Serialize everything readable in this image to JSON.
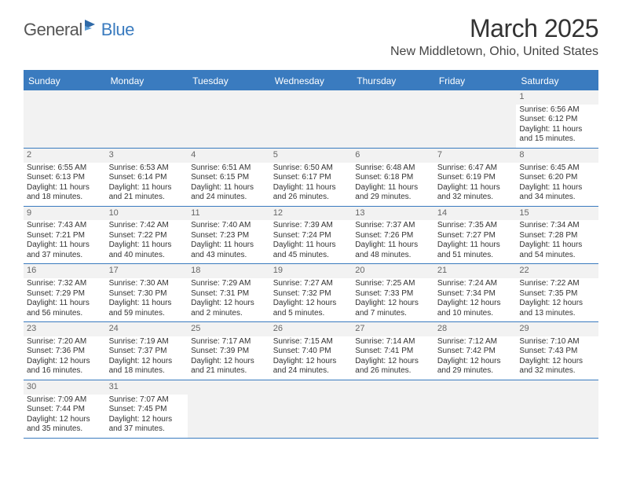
{
  "logo": {
    "text_dark": "General",
    "text_blue": "Blue"
  },
  "title": "March 2025",
  "location": "New Middletown, Ohio, United States",
  "colors": {
    "header_bg": "#3a7bbf",
    "header_text": "#ffffff",
    "grid_border": "#3a7bbf",
    "daynum_bg": "#f2f2f2",
    "text": "#333333"
  },
  "day_names": [
    "Sunday",
    "Monday",
    "Tuesday",
    "Wednesday",
    "Thursday",
    "Friday",
    "Saturday"
  ],
  "weeks": [
    [
      null,
      null,
      null,
      null,
      null,
      null,
      {
        "n": "1",
        "sr": "Sunrise: 6:56 AM",
        "ss": "Sunset: 6:12 PM",
        "d1": "Daylight: 11 hours",
        "d2": "and 15 minutes."
      }
    ],
    [
      {
        "n": "2",
        "sr": "Sunrise: 6:55 AM",
        "ss": "Sunset: 6:13 PM",
        "d1": "Daylight: 11 hours",
        "d2": "and 18 minutes."
      },
      {
        "n": "3",
        "sr": "Sunrise: 6:53 AM",
        "ss": "Sunset: 6:14 PM",
        "d1": "Daylight: 11 hours",
        "d2": "and 21 minutes."
      },
      {
        "n": "4",
        "sr": "Sunrise: 6:51 AM",
        "ss": "Sunset: 6:15 PM",
        "d1": "Daylight: 11 hours",
        "d2": "and 24 minutes."
      },
      {
        "n": "5",
        "sr": "Sunrise: 6:50 AM",
        "ss": "Sunset: 6:17 PM",
        "d1": "Daylight: 11 hours",
        "d2": "and 26 minutes."
      },
      {
        "n": "6",
        "sr": "Sunrise: 6:48 AM",
        "ss": "Sunset: 6:18 PM",
        "d1": "Daylight: 11 hours",
        "d2": "and 29 minutes."
      },
      {
        "n": "7",
        "sr": "Sunrise: 6:47 AM",
        "ss": "Sunset: 6:19 PM",
        "d1": "Daylight: 11 hours",
        "d2": "and 32 minutes."
      },
      {
        "n": "8",
        "sr": "Sunrise: 6:45 AM",
        "ss": "Sunset: 6:20 PM",
        "d1": "Daylight: 11 hours",
        "d2": "and 34 minutes."
      }
    ],
    [
      {
        "n": "9",
        "sr": "Sunrise: 7:43 AM",
        "ss": "Sunset: 7:21 PM",
        "d1": "Daylight: 11 hours",
        "d2": "and 37 minutes."
      },
      {
        "n": "10",
        "sr": "Sunrise: 7:42 AM",
        "ss": "Sunset: 7:22 PM",
        "d1": "Daylight: 11 hours",
        "d2": "and 40 minutes."
      },
      {
        "n": "11",
        "sr": "Sunrise: 7:40 AM",
        "ss": "Sunset: 7:23 PM",
        "d1": "Daylight: 11 hours",
        "d2": "and 43 minutes."
      },
      {
        "n": "12",
        "sr": "Sunrise: 7:39 AM",
        "ss": "Sunset: 7:24 PM",
        "d1": "Daylight: 11 hours",
        "d2": "and 45 minutes."
      },
      {
        "n": "13",
        "sr": "Sunrise: 7:37 AM",
        "ss": "Sunset: 7:26 PM",
        "d1": "Daylight: 11 hours",
        "d2": "and 48 minutes."
      },
      {
        "n": "14",
        "sr": "Sunrise: 7:35 AM",
        "ss": "Sunset: 7:27 PM",
        "d1": "Daylight: 11 hours",
        "d2": "and 51 minutes."
      },
      {
        "n": "15",
        "sr": "Sunrise: 7:34 AM",
        "ss": "Sunset: 7:28 PM",
        "d1": "Daylight: 11 hours",
        "d2": "and 54 minutes."
      }
    ],
    [
      {
        "n": "16",
        "sr": "Sunrise: 7:32 AM",
        "ss": "Sunset: 7:29 PM",
        "d1": "Daylight: 11 hours",
        "d2": "and 56 minutes."
      },
      {
        "n": "17",
        "sr": "Sunrise: 7:30 AM",
        "ss": "Sunset: 7:30 PM",
        "d1": "Daylight: 11 hours",
        "d2": "and 59 minutes."
      },
      {
        "n": "18",
        "sr": "Sunrise: 7:29 AM",
        "ss": "Sunset: 7:31 PM",
        "d1": "Daylight: 12 hours",
        "d2": "and 2 minutes."
      },
      {
        "n": "19",
        "sr": "Sunrise: 7:27 AM",
        "ss": "Sunset: 7:32 PM",
        "d1": "Daylight: 12 hours",
        "d2": "and 5 minutes."
      },
      {
        "n": "20",
        "sr": "Sunrise: 7:25 AM",
        "ss": "Sunset: 7:33 PM",
        "d1": "Daylight: 12 hours",
        "d2": "and 7 minutes."
      },
      {
        "n": "21",
        "sr": "Sunrise: 7:24 AM",
        "ss": "Sunset: 7:34 PM",
        "d1": "Daylight: 12 hours",
        "d2": "and 10 minutes."
      },
      {
        "n": "22",
        "sr": "Sunrise: 7:22 AM",
        "ss": "Sunset: 7:35 PM",
        "d1": "Daylight: 12 hours",
        "d2": "and 13 minutes."
      }
    ],
    [
      {
        "n": "23",
        "sr": "Sunrise: 7:20 AM",
        "ss": "Sunset: 7:36 PM",
        "d1": "Daylight: 12 hours",
        "d2": "and 16 minutes."
      },
      {
        "n": "24",
        "sr": "Sunrise: 7:19 AM",
        "ss": "Sunset: 7:37 PM",
        "d1": "Daylight: 12 hours",
        "d2": "and 18 minutes."
      },
      {
        "n": "25",
        "sr": "Sunrise: 7:17 AM",
        "ss": "Sunset: 7:39 PM",
        "d1": "Daylight: 12 hours",
        "d2": "and 21 minutes."
      },
      {
        "n": "26",
        "sr": "Sunrise: 7:15 AM",
        "ss": "Sunset: 7:40 PM",
        "d1": "Daylight: 12 hours",
        "d2": "and 24 minutes."
      },
      {
        "n": "27",
        "sr": "Sunrise: 7:14 AM",
        "ss": "Sunset: 7:41 PM",
        "d1": "Daylight: 12 hours",
        "d2": "and 26 minutes."
      },
      {
        "n": "28",
        "sr": "Sunrise: 7:12 AM",
        "ss": "Sunset: 7:42 PM",
        "d1": "Daylight: 12 hours",
        "d2": "and 29 minutes."
      },
      {
        "n": "29",
        "sr": "Sunrise: 7:10 AM",
        "ss": "Sunset: 7:43 PM",
        "d1": "Daylight: 12 hours",
        "d2": "and 32 minutes."
      }
    ],
    [
      {
        "n": "30",
        "sr": "Sunrise: 7:09 AM",
        "ss": "Sunset: 7:44 PM",
        "d1": "Daylight: 12 hours",
        "d2": "and 35 minutes."
      },
      {
        "n": "31",
        "sr": "Sunrise: 7:07 AM",
        "ss": "Sunset: 7:45 PM",
        "d1": "Daylight: 12 hours",
        "d2": "and 37 minutes."
      },
      null,
      null,
      null,
      null,
      null
    ]
  ]
}
